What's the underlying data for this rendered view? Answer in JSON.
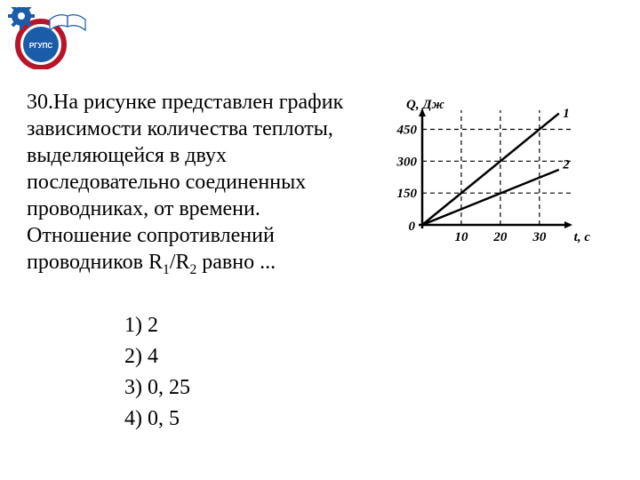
{
  "logo": {
    "outer_ring_color": "#b8142a",
    "inner_color": "#1a5ca8",
    "gear_color": "#1a5ca8",
    "book_color": "#ffffff",
    "book_outline": "#1a5ca8",
    "text_color": "#ffffff"
  },
  "question": {
    "number": "30.",
    "line1": "На рисунке представлен график",
    "line2": "зависимости количества теплоты,",
    "line3": "выделяющейся в двух",
    "line4": "последовательно соединенных",
    "line5": "проводниках, от времени.",
    "line6": "Отношение сопротивлений",
    "line7_prefix": "проводников R",
    "line7_sub1": "1",
    "line7_mid": "/R",
    "line7_sub2": "2",
    "line7_suffix": " равно ..."
  },
  "chart": {
    "type": "line",
    "ylabel": "Q, Дж",
    "xlabel": "t, c",
    "ylim": [
      0,
      540
    ],
    "xlim": [
      0,
      38
    ],
    "yticks": [
      0,
      150,
      300,
      450
    ],
    "ytick_labels": [
      "0",
      "150",
      "300",
      "450"
    ],
    "xticks": [
      10,
      20,
      30
    ],
    "xtick_labels": [
      "10",
      "20",
      "30"
    ],
    "series": [
      {
        "name": "1",
        "label": "1",
        "label_x": 36,
        "label_y": 520,
        "points": [
          [
            0,
            0
          ],
          [
            35,
            525
          ]
        ],
        "color": "#000000",
        "width": 2.5
      },
      {
        "name": "2",
        "label": "2",
        "label_x": 36,
        "label_y": 280,
        "points": [
          [
            0,
            0
          ],
          [
            35,
            260
          ]
        ],
        "color": "#000000",
        "width": 2.5
      }
    ],
    "axis_color": "#000000",
    "axis_width": 2.5,
    "grid_color": "#000000",
    "grid_dash": "5,4",
    "grid_width": 1.2,
    "background": "#ffffff",
    "label_fontsize": 15,
    "tick_fontsize": 15
  },
  "answers": {
    "a1": "1) 2",
    "a2": "2) 4",
    "a3": "3) 0, 25",
    "a4": "4) 0, 5"
  }
}
